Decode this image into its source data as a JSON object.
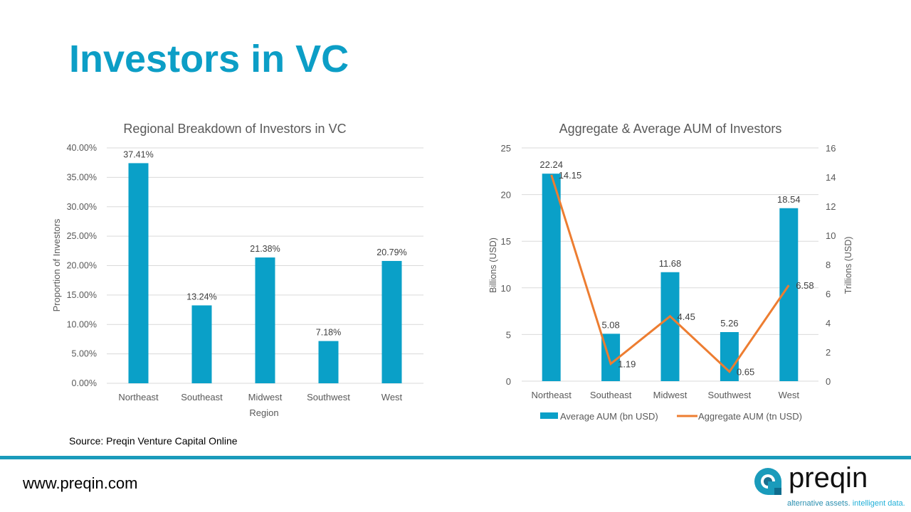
{
  "slide": {
    "title": "Investors in VC",
    "source": "Source: Preqin Venture Capital Online",
    "url": "www.preqin.com",
    "logo": {
      "word": "preqin",
      "tagline_a": "alternative assets.",
      "tagline_b": "intelligent data."
    }
  },
  "colors": {
    "bar": "#0aa0c8",
    "line": "#ED7D31",
    "accent": "#1a9bbb"
  },
  "chart_data": [
    {
      "type": "bar",
      "title": "Regional Breakdown of Investors in VC",
      "xlabel": "Region",
      "ylabel": "Proportion of Investors",
      "categories": [
        "Northeast",
        "Southeast",
        "Midwest",
        "Southwest",
        "West"
      ],
      "values": [
        37.41,
        13.24,
        21.38,
        7.18,
        20.79
      ],
      "labels": [
        "37.41%",
        "13.24%",
        "21.38%",
        "7.18%",
        "20.79%"
      ],
      "ylim": [
        0,
        40
      ],
      "yticks": [
        "0.00%",
        "5.00%",
        "10.00%",
        "15.00%",
        "20.00%",
        "25.00%",
        "30.00%",
        "35.00%",
        "40.00%"
      ],
      "grid": true
    },
    {
      "type": "bar+line",
      "title": "Aggregate & Average AUM of Investors",
      "ylabel": "Billions (USD)",
      "y2label": "Trillions (USD)",
      "categories": [
        "Northeast",
        "Southeast",
        "Midwest",
        "Southwest",
        "West"
      ],
      "series": [
        {
          "name": "Average AUM (bn USD)",
          "type": "bar",
          "axis": "left",
          "values": [
            22.24,
            5.08,
            11.68,
            5.26,
            18.54
          ]
        },
        {
          "name": "Aggregate AUM (tn USD)",
          "type": "line",
          "axis": "right",
          "values": [
            14.15,
            1.19,
            4.45,
            0.65,
            6.58
          ]
        }
      ],
      "ylim": [
        0,
        25
      ],
      "yticks": [
        "0",
        "5",
        "10",
        "15",
        "20",
        "25"
      ],
      "y2lim": [
        0,
        16
      ],
      "y2ticks": [
        "0",
        "2",
        "4",
        "6",
        "8",
        "10",
        "12",
        "14",
        "16"
      ],
      "legend": "bottom",
      "grid": true
    }
  ]
}
